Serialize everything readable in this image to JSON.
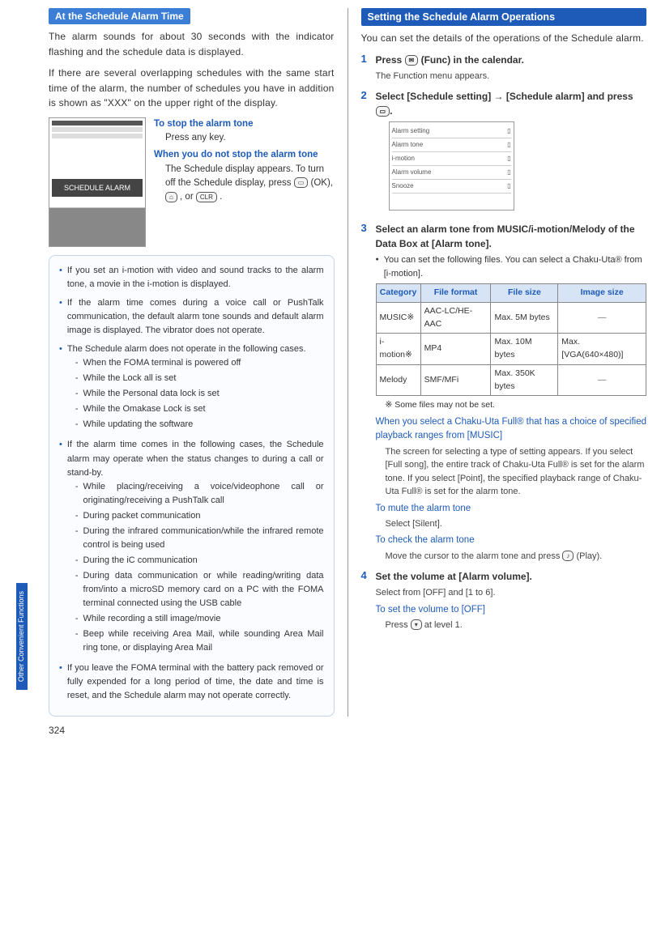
{
  "page_number": "324",
  "side_tab": "Other Convenient Functions",
  "colors": {
    "primary_blue": "#1e5bb8",
    "header_bg": "#1e5bb8",
    "sub_header_bg": "#3c7dd6",
    "table_header_bg": "#d7e4f5",
    "note_border": "#c4d5ed"
  },
  "left": {
    "sub_header": "At the Schedule Alarm Time",
    "intro1": "The alarm sounds for about 30 seconds with the indicator flashing and the schedule data is displayed.",
    "intro2": "If there are several overlapping schedules with the same start time of the alarm, the number of schedules you have in addition is shown as \"XXX\" on the upper right of the display.",
    "screenshot_label": "SCHEDULE ALARM",
    "stop_title": "To stop the alarm tone",
    "stop_body": "Press any key.",
    "nostop_title": "When you do not stop the alarm tone",
    "nostop_body": "The Schedule display appears. To turn off the Schedule display, press",
    "nostop_body2": "(OK),",
    "nostop_body3": ", or",
    "nostop_body4": ".",
    "key_ok": "▭",
    "key_end": "⌂",
    "key_clr": "CLR",
    "notes": [
      {
        "text": "If you set an i-motion with video and sound tracks to the alarm tone, a movie in the i-motion is displayed."
      },
      {
        "text": "If the alarm time comes during a voice call or PushTalk communication, the default alarm tone sounds and default alarm image is displayed. The vibrator does not operate."
      },
      {
        "text": "The Schedule alarm does not operate in the following cases.",
        "subs": [
          "When the FOMA terminal is powered off",
          "While the Lock all is set",
          "While the Personal data lock is set",
          "While the Omakase Lock is set",
          "While updating the software"
        ]
      },
      {
        "text": "If the alarm time comes in the following cases, the Schedule alarm may operate when the status changes to during a call or stand-by.",
        "subs": [
          "While placing/receiving a voice/videophone call or originating/receiving a PushTalk call",
          "During packet communication",
          "During the infrared communication/while the infrared remote control is being used",
          "During the iC communication",
          "During data communication or while reading/writing data from/into a microSD memory card on a PC with the FOMA terminal connected using the USB cable",
          "While recording a still image/movie",
          "Beep while receiving Area Mail, while sounding Area Mail ring tone, or displaying Area Mail"
        ]
      },
      {
        "text": "If you leave the FOMA terminal with the battery pack removed or fully expended for a long period of time, the date and time is reset, and the Schedule alarm may not operate correctly."
      }
    ]
  },
  "right": {
    "header": "Setting the Schedule Alarm Operations",
    "intro": "You can set the details of the operations of the Schedule alarm.",
    "steps": [
      {
        "num": "1",
        "title_pre": "Press",
        "title_icon": "✉",
        "title_post": "(Func) in the calendar.",
        "sub": "The Function menu appears."
      },
      {
        "num": "2",
        "title": "Select [Schedule setting] → [Schedule alarm] and press",
        "title_icon": "▭",
        "title_end": ".",
        "screenshot_rows": [
          "Alarm setting",
          "Alarm tone",
          "i-motion",
          "Alarm volume",
          "Snooze"
        ]
      },
      {
        "num": "3",
        "title": "Select an alarm tone from MUSIC/i-motion/Melody of the Data Box at [Alarm tone].",
        "bullet": "You can set the following files. You can select a Chaku-Uta® from [i-motion].",
        "table": {
          "headers": [
            "Category",
            "File format",
            "File size",
            "Image size"
          ],
          "rows": [
            [
              "MUSIC※",
              "AAC-LC/HE-AAC",
              "Max. 5M bytes",
              "—"
            ],
            [
              "i-motion※",
              "MP4",
              "Max. 10M bytes",
              "Max. [VGA(640×480)]"
            ],
            [
              "Melody",
              "SMF/MFi",
              "Max. 350K bytes",
              "—"
            ]
          ]
        },
        "footnote": "※ Some files may not be set.",
        "blue1_title": "When you select a Chaku-Uta Full® that has a choice of specified playback ranges from [MUSIC]",
        "blue1_body": "The screen for selecting a type of setting appears. If you select [Full song], the entire track of Chaku-Uta Full® is set for the alarm tone. If you select [Point], the specified playback range of Chaku-Uta Full® is set for the alarm tone.",
        "blue2_title": "To mute the alarm tone",
        "blue2_body": "Select [Silent].",
        "blue3_title": "To check the alarm tone",
        "blue3_body_pre": "Move the cursor to the alarm tone and press",
        "blue3_icon": "♪",
        "blue3_body_post": "(Play)."
      },
      {
        "num": "4",
        "title": "Set the volume at [Alarm volume].",
        "sub": "Select from [OFF] and [1 to 6].",
        "blue_title": "To set the volume to [OFF]",
        "blue_body_pre": "Press",
        "blue_icon": "▾",
        "blue_body_post": "at level 1."
      }
    ]
  }
}
